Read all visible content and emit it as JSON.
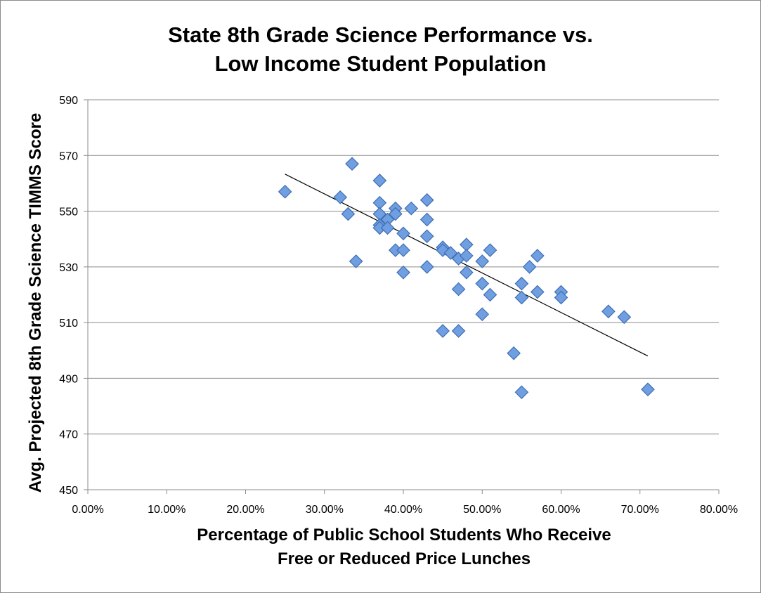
{
  "chart_data": {
    "type": "scatter",
    "title_lines": [
      "State 8th Grade Science Performance vs.",
      "Low Income Student Population"
    ],
    "xlabel_lines": [
      "Percentage of Public School Students Who Receive",
      "Free or Reduced Price Lunches"
    ],
    "ylabel": "Avg. Projected 8th Grade Science TIMMS Score",
    "xlim": [
      0,
      80
    ],
    "ylim": [
      450,
      590
    ],
    "xticks": [
      {
        "value": 0,
        "label": "0.00%"
      },
      {
        "value": 10,
        "label": "10.00%"
      },
      {
        "value": 20,
        "label": "20.00%"
      },
      {
        "value": 30,
        "label": "30.00%"
      },
      {
        "value": 40,
        "label": "40.00%"
      },
      {
        "value": 50,
        "label": "50.00%"
      },
      {
        "value": 60,
        "label": "60.00%"
      },
      {
        "value": 70,
        "label": "70.00%"
      },
      {
        "value": 80,
        "label": "80.00%"
      }
    ],
    "yticks": [
      {
        "value": 450,
        "label": "450"
      },
      {
        "value": 470,
        "label": "470"
      },
      {
        "value": 490,
        "label": "490"
      },
      {
        "value": 510,
        "label": "510"
      },
      {
        "value": 530,
        "label": "530"
      },
      {
        "value": 550,
        "label": "550"
      },
      {
        "value": 570,
        "label": "570"
      },
      {
        "value": 590,
        "label": "590"
      }
    ],
    "grid": "horizontal",
    "marker": "diamond",
    "point_color": "#6f9fe0",
    "point_edge_color": "#3f6fb5",
    "trendline": {
      "type": "linear",
      "x": [
        25,
        71
      ],
      "y": [
        563.3,
        498.0
      ],
      "color": "#000000"
    },
    "points": [
      {
        "x": 25,
        "y": 557
      },
      {
        "x": 32,
        "y": 555
      },
      {
        "x": 33,
        "y": 549
      },
      {
        "x": 33.5,
        "y": 567
      },
      {
        "x": 34,
        "y": 532
      },
      {
        "x": 37,
        "y": 561
      },
      {
        "x": 37,
        "y": 553
      },
      {
        "x": 37,
        "y": 549
      },
      {
        "x": 37,
        "y": 545
      },
      {
        "x": 37,
        "y": 544
      },
      {
        "x": 38,
        "y": 547
      },
      {
        "x": 38,
        "y": 544
      },
      {
        "x": 39,
        "y": 551
      },
      {
        "x": 39,
        "y": 549
      },
      {
        "x": 39,
        "y": 536
      },
      {
        "x": 40,
        "y": 542
      },
      {
        "x": 40,
        "y": 536
      },
      {
        "x": 40,
        "y": 528
      },
      {
        "x": 41,
        "y": 551
      },
      {
        "x": 43,
        "y": 554
      },
      {
        "x": 43,
        "y": 547
      },
      {
        "x": 43,
        "y": 541
      },
      {
        "x": 43,
        "y": 530
      },
      {
        "x": 45,
        "y": 537
      },
      {
        "x": 45,
        "y": 536
      },
      {
        "x": 45,
        "y": 507
      },
      {
        "x": 46,
        "y": 535
      },
      {
        "x": 47,
        "y": 533
      },
      {
        "x": 47,
        "y": 522
      },
      {
        "x": 47,
        "y": 507
      },
      {
        "x": 48,
        "y": 538
      },
      {
        "x": 48,
        "y": 534
      },
      {
        "x": 48,
        "y": 528
      },
      {
        "x": 50,
        "y": 532
      },
      {
        "x": 50,
        "y": 524
      },
      {
        "x": 50,
        "y": 513
      },
      {
        "x": 51,
        "y": 536
      },
      {
        "x": 51,
        "y": 520
      },
      {
        "x": 54,
        "y": 499
      },
      {
        "x": 55,
        "y": 524
      },
      {
        "x": 55,
        "y": 519
      },
      {
        "x": 55,
        "y": 485
      },
      {
        "x": 56,
        "y": 530
      },
      {
        "x": 57,
        "y": 534
      },
      {
        "x": 57,
        "y": 521
      },
      {
        "x": 60,
        "y": 521
      },
      {
        "x": 60,
        "y": 519
      },
      {
        "x": 66,
        "y": 514
      },
      {
        "x": 68,
        "y": 512
      },
      {
        "x": 71,
        "y": 486
      }
    ]
  }
}
